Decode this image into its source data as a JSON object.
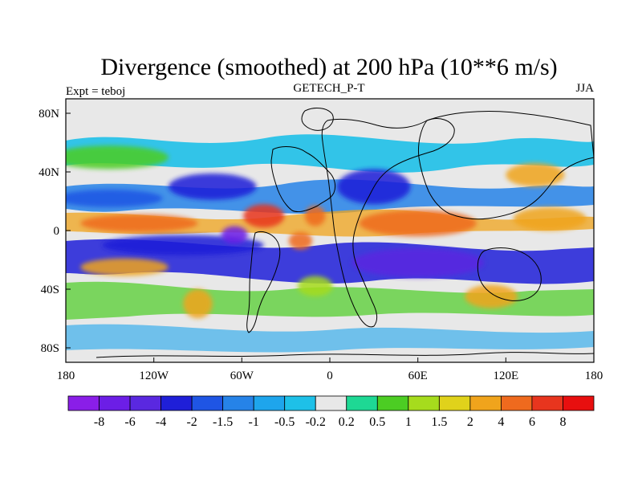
{
  "chart_data": {
    "type": "heatmap",
    "title": "Divergence (smoothed) at 200 hPa (10**6 m/s)",
    "subtitle": "GETECH_P-T",
    "left_label": "Expt = teboj",
    "right_label": "JJA",
    "x_axis": {
      "ticks": [
        "180",
        "120W",
        "60W",
        "0",
        "60E",
        "120E",
        "180"
      ],
      "range": [
        -180,
        180
      ]
    },
    "y_axis": {
      "ticks": [
        "80N",
        "40N",
        "0",
        "40S",
        "80S"
      ],
      "range": [
        -90,
        90
      ]
    },
    "legend": {
      "placement": "bottom",
      "boundaries": [
        "-8",
        "-6",
        "-4",
        "-2",
        "-1.5",
        "-1",
        "-0.5",
        "-0.2",
        "0.2",
        "0.5",
        "1",
        "1.5",
        "2",
        "4",
        "6",
        "8"
      ],
      "colors": [
        "#8a1ee8",
        "#6c1ee6",
        "#5a28e0",
        "#1f1fd8",
        "#1f55e4",
        "#2683e8",
        "#1ea5ec",
        "#1ec0e8",
        "#e8e8e8",
        "#1ed894",
        "#4ccd23",
        "#a6dc1d",
        "#e0d21b",
        "#f0a41c",
        "#ef6a1e",
        "#e8351e",
        "#e80f0f"
      ]
    },
    "field_blobs": [
      {
        "lon": -150,
        "lat": 50,
        "rx": 40,
        "ry": 8,
        "color": "#4ccd23"
      },
      {
        "lon": -150,
        "lat": 22,
        "rx": 36,
        "ry": 6,
        "color": "#1f55e4"
      },
      {
        "lon": -130,
        "lat": 5,
        "rx": 40,
        "ry": 6,
        "color": "#ef6a1e"
      },
      {
        "lon": -100,
        "lat": -10,
        "rx": 55,
        "ry": 7,
        "color": "#1f1fd8"
      },
      {
        "lon": -140,
        "lat": -25,
        "rx": 30,
        "ry": 6,
        "color": "#f0a41c"
      },
      {
        "lon": -80,
        "lat": 30,
        "rx": 30,
        "ry": 9,
        "color": "#1f1fd8"
      },
      {
        "lon": -45,
        "lat": 10,
        "rx": 14,
        "ry": 8,
        "color": "#e8351e"
      },
      {
        "lon": -10,
        "lat": 10,
        "rx": 7,
        "ry": 7,
        "color": "#ef6a1e"
      },
      {
        "lon": -20,
        "lat": -7,
        "rx": 8,
        "ry": 6,
        "color": "#ef6a1e"
      },
      {
        "lon": -65,
        "lat": -3,
        "rx": 9,
        "ry": 6,
        "color": "#6c1ee6"
      },
      {
        "lon": 30,
        "lat": 30,
        "rx": 25,
        "ry": 12,
        "color": "#1f1fd8"
      },
      {
        "lon": 60,
        "lat": 5,
        "rx": 40,
        "ry": 9,
        "color": "#ef6a1e"
      },
      {
        "lon": 60,
        "lat": -22,
        "rx": 45,
        "ry": 10,
        "color": "#5a28e0"
      },
      {
        "lon": 140,
        "lat": 38,
        "rx": 20,
        "ry": 8,
        "color": "#f0a41c"
      },
      {
        "lon": 150,
        "lat": 8,
        "rx": 25,
        "ry": 8,
        "color": "#f0a41c"
      },
      {
        "lon": -90,
        "lat": -50,
        "rx": 10,
        "ry": 10,
        "color": "#f0a41c"
      },
      {
        "lon": -10,
        "lat": -38,
        "rx": 12,
        "ry": 7,
        "color": "#a6dc1d"
      },
      {
        "lon": 110,
        "lat": -45,
        "rx": 18,
        "ry": 8,
        "color": "#f0a41c"
      }
    ]
  }
}
